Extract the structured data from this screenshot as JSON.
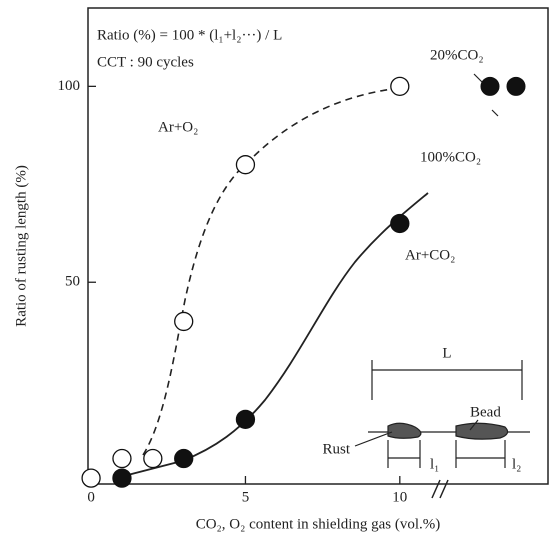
{
  "chart_data": {
    "type": "scatter",
    "formula": "Ratio (%) = 100 * (l₁+l₂···) / L",
    "condition": "CCT : 90 cycles",
    "x_label": "CO₂, O₂ content in shielding gas (vol.%)",
    "y_label": "Ratio of rusting length (%)",
    "xlim": [
      -0.1,
      14.8
    ],
    "ylim": [
      -1.5,
      120
    ],
    "xticks": [
      0,
      5,
      10
    ],
    "yticks": [
      50,
      100
    ],
    "series": [
      {
        "name": "Ar+O₂",
        "color": "#ffffff",
        "x": [
          0,
          1,
          2,
          3,
          5,
          10
        ],
        "values": [
          0,
          5,
          5,
          40,
          80,
          100
        ]
      },
      {
        "name": "Ar+CO₂",
        "color": "#111111",
        "x": [
          1,
          3,
          5,
          10
        ],
        "values": [
          0,
          5,
          15,
          65
        ]
      }
    ],
    "broken_axis_points": [
      {
        "label": "20%CO₂",
        "value": 100
      },
      {
        "label": "100%CO₂",
        "value": 100
      }
    ],
    "inset": {
      "length": "L",
      "rust": "Rust",
      "bead": "Bead",
      "l1": "l₁",
      "l2": "l₂"
    }
  }
}
